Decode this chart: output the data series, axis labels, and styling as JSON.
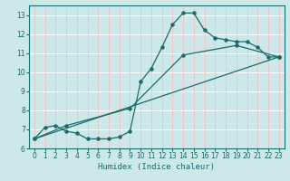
{
  "xlabel": "Humidex (Indice chaleur)",
  "xlim": [
    -0.5,
    23.5
  ],
  "ylim": [
    6.0,
    13.5
  ],
  "yticks": [
    6,
    7,
    8,
    9,
    10,
    11,
    12,
    13
  ],
  "xticks": [
    0,
    1,
    2,
    3,
    4,
    5,
    6,
    7,
    8,
    9,
    10,
    11,
    12,
    13,
    14,
    15,
    16,
    17,
    18,
    19,
    20,
    21,
    22,
    23
  ],
  "bg_color": "#cce8e8",
  "grid_color_h": "#ffffff",
  "grid_color_v": "#f0c8c8",
  "line_color": "#1a6b6b",
  "line1_x": [
    0,
    1,
    2,
    3,
    4,
    5,
    6,
    7,
    8,
    9,
    10,
    11,
    12,
    13,
    14,
    15,
    16,
    17,
    18,
    19,
    20,
    21,
    22,
    23
  ],
  "line1_y": [
    6.5,
    7.1,
    7.2,
    6.9,
    6.8,
    6.5,
    6.5,
    6.5,
    6.6,
    6.9,
    9.5,
    10.2,
    11.3,
    12.5,
    13.1,
    13.1,
    12.2,
    11.8,
    11.7,
    11.6,
    11.6,
    11.3,
    10.8,
    10.8
  ],
  "line2_x": [
    0,
    23
  ],
  "line2_y": [
    6.5,
    10.8
  ],
  "line3_x": [
    0,
    3,
    9,
    14,
    19,
    23
  ],
  "line3_y": [
    6.5,
    7.2,
    8.1,
    10.9,
    11.4,
    10.8
  ],
  "tick_fontsize": 5.5,
  "xlabel_fontsize": 6.5
}
